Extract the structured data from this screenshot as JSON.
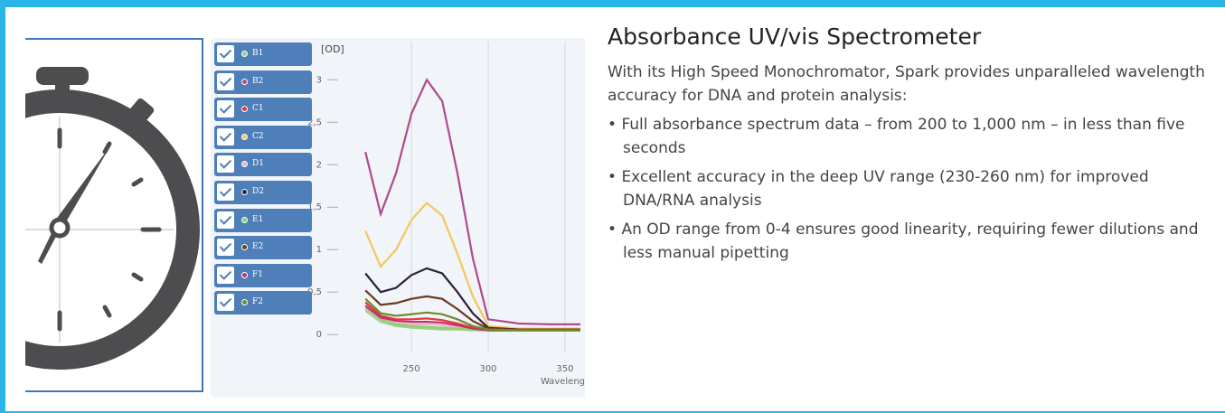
{
  "heading": "Absorbance UV/vis Spectrometer",
  "intro": "With its High Speed Monochromator, Spark provides unparalleled wavelength accuracy for DNA and protein analysis:",
  "bullets": [
    "Full absorbance spectrum data – from 200 to 1,000 nm – in less than five seconds",
    "Excellent accuracy in the deep UV range (230-260 nm) for improved DNA/RNA analysis",
    "An OD range from 0-4 ensures good linearity, requiring fewer dilutions and less manual pipetting"
  ],
  "chart": {
    "type": "line",
    "y_label": "[OD]",
    "x_label": "Waveleng",
    "x": [
      220,
      230,
      240,
      250,
      260,
      270,
      280,
      290,
      300,
      320,
      340,
      360
    ],
    "xlim": [
      194,
      363
    ],
    "ylim": [
      -0.2,
      3.45
    ],
    "xticks": [
      250,
      300,
      350
    ],
    "yticks": [
      0,
      {
        "value": 0.5,
        "label": "0,5"
      },
      1,
      {
        "value": 1.5,
        "label": "1,5"
      },
      2,
      {
        "value": 2.5,
        "label": "2,5"
      },
      3
    ],
    "grid": true,
    "series": [
      {
        "name": "B1",
        "color": "#9fd08a",
        "values": [
          0.28,
          0.15,
          0.1,
          0.08,
          0.07,
          0.06,
          0.06,
          0.05,
          0.05,
          0.05,
          0.05,
          0.05
        ]
      },
      {
        "name": "B2",
        "color": "#b04a8c",
        "values": [
          2.15,
          1.42,
          1.9,
          2.6,
          3.0,
          2.75,
          1.9,
          0.9,
          0.18,
          0.13,
          0.12,
          0.12
        ]
      },
      {
        "name": "C1",
        "color": "#e03a3a",
        "values": [
          0.38,
          0.22,
          0.18,
          0.18,
          0.19,
          0.17,
          0.13,
          0.08,
          0.05,
          0.05,
          0.05,
          0.05
        ]
      },
      {
        "name": "C2",
        "color": "#f2c75c",
        "values": [
          1.22,
          0.8,
          1.0,
          1.35,
          1.55,
          1.4,
          0.95,
          0.45,
          0.1,
          0.07,
          0.07,
          0.07
        ]
      },
      {
        "name": "D1",
        "color": "#e7b6c9",
        "values": [
          0.3,
          0.17,
          0.13,
          0.12,
          0.12,
          0.11,
          0.09,
          0.07,
          0.05,
          0.05,
          0.05,
          0.05
        ]
      },
      {
        "name": "D2",
        "color": "#2e1f3a",
        "values": [
          0.72,
          0.5,
          0.55,
          0.7,
          0.78,
          0.72,
          0.5,
          0.25,
          0.08,
          0.06,
          0.06,
          0.06
        ]
      },
      {
        "name": "E1",
        "color": "#8fcf6e",
        "values": [
          0.32,
          0.18,
          0.12,
          0.1,
          0.09,
          0.08,
          0.07,
          0.06,
          0.05,
          0.05,
          0.05,
          0.05
        ]
      },
      {
        "name": "E2",
        "color": "#6b3a1e",
        "values": [
          0.52,
          0.35,
          0.37,
          0.42,
          0.45,
          0.42,
          0.3,
          0.16,
          0.07,
          0.06,
          0.06,
          0.06
        ]
      },
      {
        "name": "F1",
        "color": "#c2306e",
        "values": [
          0.34,
          0.2,
          0.16,
          0.15,
          0.15,
          0.14,
          0.11,
          0.07,
          0.05,
          0.05,
          0.05,
          0.05
        ]
      },
      {
        "name": "F2",
        "color": "#6f8a2a",
        "values": [
          0.42,
          0.25,
          0.22,
          0.24,
          0.26,
          0.24,
          0.18,
          0.1,
          0.06,
          0.05,
          0.05,
          0.05
        ]
      }
    ]
  }
}
